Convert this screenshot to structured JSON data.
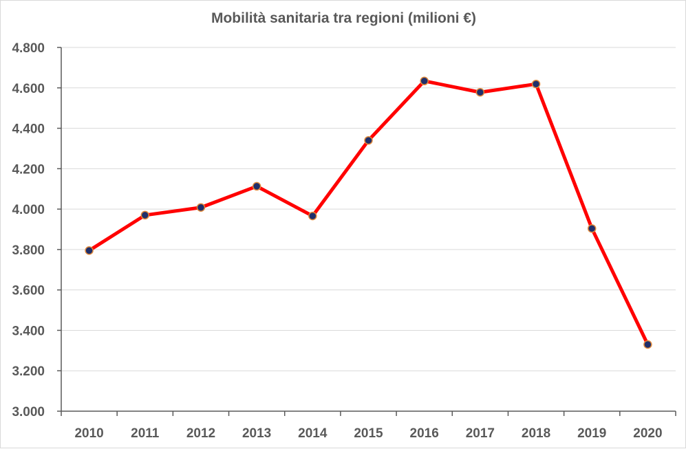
{
  "chart_data": {
    "type": "line",
    "title": "Mobilità sanitaria tra regioni (milioni €)",
    "xlabel": "",
    "ylabel": "",
    "categories": [
      "2010",
      "2011",
      "2012",
      "2013",
      "2014",
      "2015",
      "2016",
      "2017",
      "2018",
      "2019",
      "2020"
    ],
    "series": [
      {
        "values": [
          3795,
          3970,
          4008,
          4113,
          3966,
          4340,
          4634,
          4578,
          4619,
          3904,
          3330
        ],
        "line_color": "#ff0000",
        "marker_color": "#1f2f6b",
        "marker_edge": "#e08a3c"
      }
    ],
    "ylim": [
      3000,
      4800
    ],
    "yticks": [
      3000,
      3200,
      3400,
      3600,
      3800,
      4000,
      4200,
      4400,
      4600,
      4800
    ],
    "ytick_labels": [
      "3.000",
      "3.200",
      "3.400",
      "3.600",
      "3.800",
      "4.000",
      "4.200",
      "4.400",
      "4.600",
      "4.800"
    ],
    "grid": true,
    "gridline_color": "#d9d9d9",
    "axis_color": "#595959"
  }
}
